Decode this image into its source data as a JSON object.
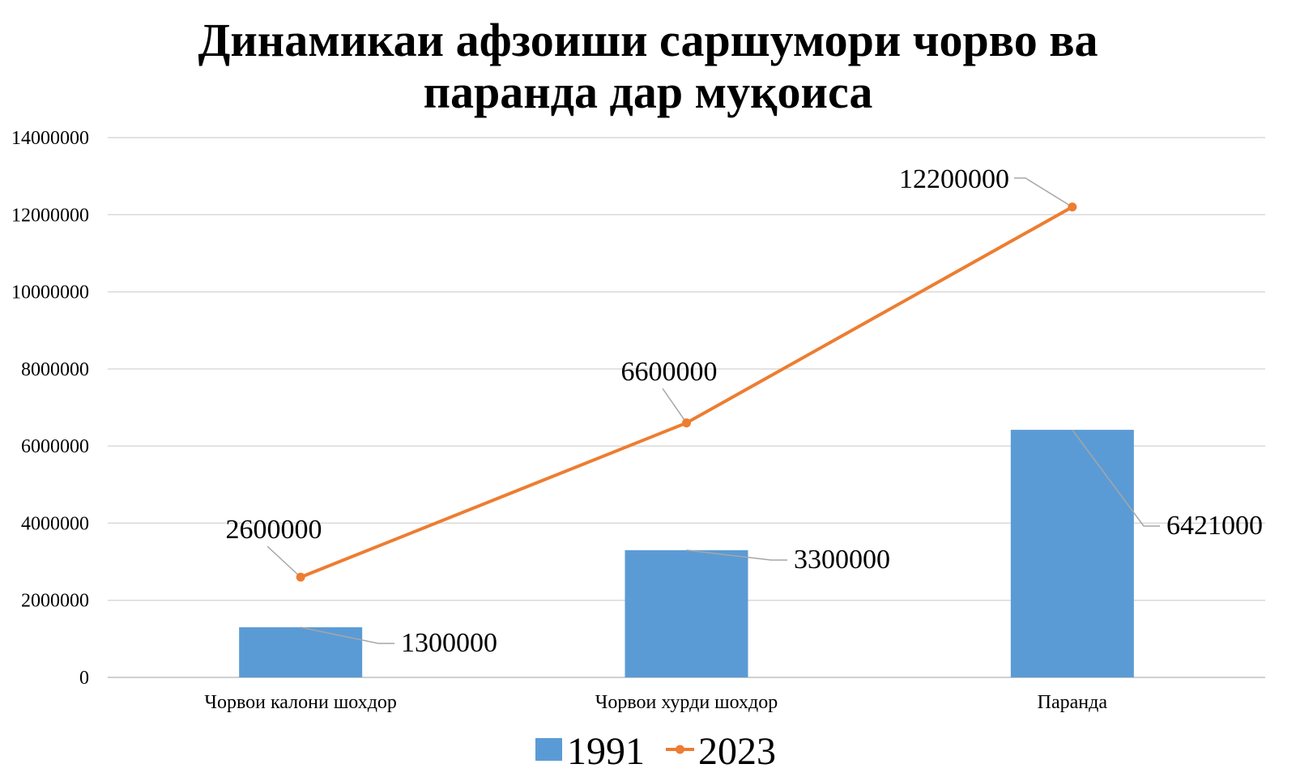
{
  "chart_data": {
    "type": "bar",
    "title_lines": [
      "Динамикаи афзоиши саршумори чорво ва",
      "паранда дар муқоиса"
    ],
    "categories": [
      "Чорвои калони шохдор",
      "Чорвои хурди шохдор",
      "Паранда"
    ],
    "series": [
      {
        "name": "1991",
        "type": "bar",
        "values": [
          1300000,
          3300000,
          6421000
        ],
        "labels": [
          "1300000",
          "3300000",
          "6421000"
        ],
        "color": "#5B9BD5"
      },
      {
        "name": "2023",
        "type": "line",
        "values": [
          2600000,
          6600000,
          12200000
        ],
        "labels": [
          "2600000",
          "6600000",
          "12200000"
        ],
        "color": "#ED7D31"
      }
    ],
    "ylim": [
      0,
      14000000
    ],
    "yticks": [
      "0",
      "2000000",
      "4000000",
      "6000000",
      "8000000",
      "10000000",
      "12000000",
      "14000000"
    ],
    "grid": true,
    "legend_position": "bottom",
    "xlabel": "",
    "ylabel": ""
  }
}
